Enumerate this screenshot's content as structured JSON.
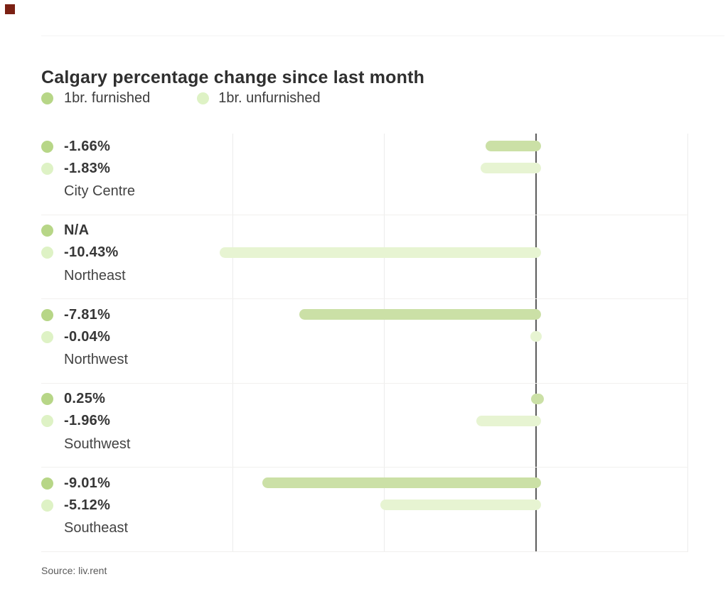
{
  "decor": {
    "corner_square_color": "#7b2013"
  },
  "colors": {
    "furnished_dot": "#b7d687",
    "furnished_bar": "#cbe0a6",
    "unfurnished_dot": "#def2c5",
    "unfurnished_bar": "#e7f4d2",
    "axis_line": "#5c5c5c"
  },
  "source_note": "Source: liv.rent",
  "chart_data": {
    "type": "bar",
    "orientation": "horizontal",
    "title": "Calgary percentage change since last month",
    "categories": [
      "City Centre",
      "Northeast",
      "Northwest",
      "Southwest",
      "Southeast"
    ],
    "series": [
      {
        "name": "1br. furnished",
        "values": [
          -1.66,
          null,
          -7.81,
          0.25,
          -9.01
        ],
        "labels": [
          "-1.66%",
          "N/A",
          "-7.81%",
          "0.25%",
          "-9.01%"
        ],
        "color": "#cbe0a6",
        "dot_color": "#b7d687"
      },
      {
        "name": "1br. unfurnished",
        "values": [
          -1.83,
          -10.43,
          -0.04,
          -1.96,
          -5.12
        ],
        "labels": [
          "-1.83%",
          "-10.43%",
          "-0.04%",
          "-1.96%",
          "-5.12%"
        ],
        "color": "#e7f4d2",
        "dot_color": "#def2c5"
      }
    ],
    "xlim": [
      -10.6,
      5
    ],
    "gridlines_percent": [
      -10,
      -5,
      0,
      5
    ],
    "zero_axis": 0,
    "grid": true,
    "legend_position": "top-left",
    "value_labels_shown": true,
    "source": "Source: liv.rent"
  }
}
